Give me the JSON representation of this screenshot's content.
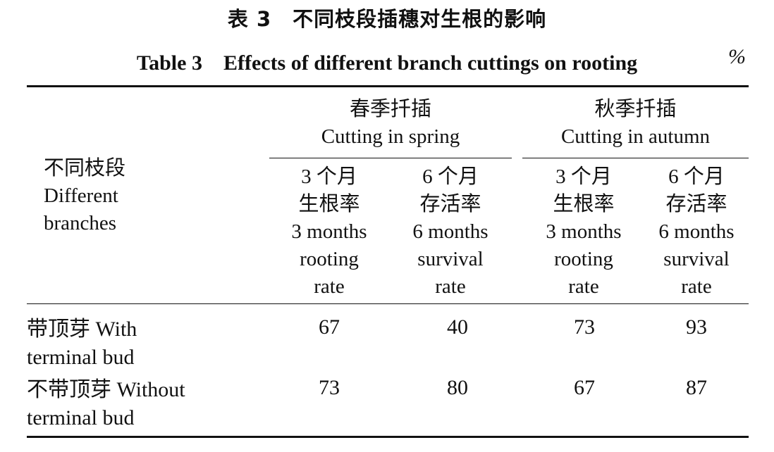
{
  "table": {
    "title_cn": "表 3　不同枝段插穗对生根的影响",
    "title_en": "Table 3　Effects of different branch cuttings on rooting",
    "unit": "%",
    "row_header": {
      "cn": "不同枝段",
      "en_line1": "Different",
      "en_line2": "branches"
    },
    "groups": [
      {
        "cn": "春季扦插",
        "en": "Cutting in spring"
      },
      {
        "cn": "秋季扦插",
        "en": "Cutting in autumn"
      }
    ],
    "subcolumns": [
      {
        "cn1": "3 个月",
        "cn2": "生根率",
        "en1": "3 months",
        "en2": "rooting",
        "en3": "rate"
      },
      {
        "cn1": "6 个月",
        "cn2": "存活率",
        "en1": "6 months",
        "en2": "survival",
        "en3": "rate"
      },
      {
        "cn1": "3 个月",
        "cn2": "生根率",
        "en1": "3 months",
        "en2": "rooting",
        "en3": "rate"
      },
      {
        "cn1": "6 个月",
        "cn2": "存活率",
        "en1": "6 months",
        "en2": "survival",
        "en3": "rate"
      }
    ],
    "rows": [
      {
        "label_line1": "带顶芽 With",
        "label_line2": "terminal bud",
        "values": [
          "67",
          "40",
          "73",
          "93"
        ]
      },
      {
        "label_line1": "不带顶芽 Without",
        "label_line2": "terminal bud",
        "values": [
          "73",
          "80",
          "67",
          "87"
        ]
      }
    ]
  }
}
